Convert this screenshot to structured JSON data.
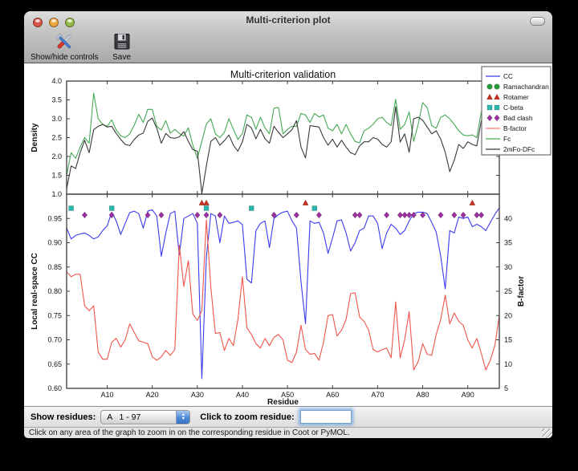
{
  "window": {
    "title": "Multi-criterion plot",
    "traffic_lights": {
      "close": "#d7574a",
      "minimize": "#eca73f",
      "zoom": "#94bb4a"
    }
  },
  "toolbar": {
    "show_hide_label": "Show/hide controls",
    "save_label": "Save"
  },
  "controls": {
    "show_residues_label": "Show residues:",
    "show_residues_value": "A   1 - 97",
    "zoom_residue_label": "Click to zoom residue:",
    "zoom_residue_value": ""
  },
  "status_text": "Click on any area of the graph to zoom in on the corresponding residue in Coot or PyMOL.",
  "chart_data": {
    "type": "line",
    "title": "Multi-criterion validation",
    "xlabel": "Residue",
    "x_tick_labels": [
      "A10",
      "A20",
      "A30",
      "A40",
      "A50",
      "A60",
      "A70",
      "A80",
      "A90"
    ],
    "x_tick_residues": [
      10,
      20,
      30,
      40,
      50,
      60,
      70,
      80,
      90
    ],
    "n_residues": 97,
    "legend_position": "upper right",
    "grid": false,
    "top": {
      "ylabel": "Density",
      "ylim": [
        1.0,
        4.0
      ],
      "yticks": [
        1.0,
        1.5,
        2.0,
        2.5,
        3.0,
        3.5,
        4.0
      ],
      "ytick_labels": [
        "1.0",
        "1.5",
        "2.0",
        "2.5",
        "3.0",
        "3.5",
        "4.0"
      ],
      "series": [
        {
          "name": "Fc",
          "color": "#46a956",
          "values": [
            1.5,
            2.1,
            1.95,
            2.25,
            2.5,
            2.35,
            3.68,
            3.0,
            2.85,
            2.8,
            2.97,
            2.7,
            2.55,
            2.5,
            2.6,
            2.83,
            3.12,
            2.9,
            3.25,
            3.25,
            2.8,
            2.7,
            2.95,
            2.62,
            2.72,
            2.61,
            2.54,
            2.76,
            2.3,
            1.95,
            2.4,
            2.86,
            3.0,
            2.6,
            2.5,
            2.64,
            3.0,
            2.72,
            2.45,
            2.61,
            3.1,
            3.04,
            2.72,
            3.04,
            2.76,
            2.6,
            3.28,
            3.3,
            2.6,
            2.72,
            2.8,
            2.8,
            3.14,
            3.1,
            2.9,
            3.14,
            3.05,
            3.1,
            2.75,
            2.68,
            2.85,
            2.6,
            2.85,
            2.6,
            2.4,
            2.36,
            2.68,
            2.75,
            2.85,
            3.0,
            3.04,
            2.9,
            2.82,
            3.52,
            2.72,
            2.85,
            3.18,
            2.4,
            2.85,
            3.43,
            3.29,
            2.82,
            2.75,
            3.04,
            3.1,
            3.0,
            2.85,
            2.68,
            2.57,
            2.55,
            2.57,
            2.5,
            3.18,
            2.45,
            3.04,
            3.3,
            3.15
          ]
        },
        {
          "name": "2mFo-DFc",
          "color": "#3a3a3a",
          "values": [
            1.15,
            1.75,
            1.68,
            2.1,
            2.43,
            2.1,
            2.71,
            2.8,
            2.85,
            2.78,
            2.8,
            2.61,
            2.45,
            2.32,
            2.29,
            2.45,
            2.57,
            2.62,
            2.93,
            3.02,
            2.75,
            2.35,
            2.61,
            2.5,
            2.48,
            2.52,
            2.66,
            2.4,
            2.18,
            2.14,
            1.02,
            1.75,
            2.4,
            2.5,
            2.3,
            2.42,
            2.57,
            2.3,
            2.14,
            2.39,
            2.85,
            2.76,
            2.47,
            2.72,
            2.47,
            2.35,
            2.8,
            2.64,
            2.5,
            2.6,
            2.71,
            2.95,
            2.25,
            1.96,
            2.82,
            2.8,
            2.78,
            2.5,
            2.3,
            2.46,
            2.25,
            2.43,
            2.25,
            2.1,
            2.05,
            2.28,
            2.39,
            2.39,
            2.5,
            2.46,
            2.32,
            2.25,
            2.39,
            3.32,
            2.38,
            2.6,
            2.11,
            3.0,
            3.04,
            2.96,
            2.78,
            2.6,
            2.68,
            2.46,
            2.11,
            1.6,
            1.9,
            2.32,
            2.21,
            2.39,
            2.32,
            2.28,
            2.95,
            2.43,
            2.32,
            3.1,
            2.1
          ]
        }
      ]
    },
    "bottom": {
      "ylabel_left": "Local real-space CC",
      "ylim_left": [
        0.6,
        1.0
      ],
      "yticks_left": [
        0.6,
        0.65,
        0.7,
        0.75,
        0.8,
        0.85,
        0.9,
        0.95
      ],
      "ytick_labels_left": [
        "0.60",
        "0.65",
        "0.70",
        "0.75",
        "0.80",
        "0.85",
        "0.90",
        "0.95"
      ],
      "ylabel_right": "B-factor",
      "ylim_right": [
        5,
        45
      ],
      "yticks_right": [
        5,
        10,
        15,
        20,
        25,
        30,
        35,
        40
      ],
      "ytick_labels_right": [
        "5",
        "10",
        "15",
        "20",
        "25",
        "30",
        "35",
        "40"
      ],
      "series": [
        {
          "name": "CC",
          "axis": "left",
          "color": "#3b3bee",
          "values": [
            0.93,
            0.908,
            0.915,
            0.918,
            0.92,
            0.915,
            0.908,
            0.912,
            0.925,
            0.935,
            0.963,
            0.945,
            0.917,
            0.94,
            0.962,
            0.965,
            0.96,
            0.93,
            0.965,
            0.968,
            0.955,
            0.872,
            0.92,
            0.96,
            0.965,
            0.875,
            0.95,
            0.955,
            0.96,
            0.94,
            0.62,
            0.87,
            0.96,
            0.955,
            0.9,
            0.955,
            0.94,
            0.942,
            0.945,
            0.937,
            0.825,
            0.817,
            0.925,
            0.94,
            0.945,
            0.89,
            0.95,
            0.958,
            0.963,
            0.965,
            0.945,
            0.93,
            0.82,
            0.733,
            0.945,
            0.94,
            0.942,
            0.92,
            0.878,
            0.91,
            0.945,
            0.947,
            0.92,
            0.883,
            0.9,
            0.925,
            0.93,
            0.955,
            0.955,
            0.94,
            0.888,
            0.92,
            0.938,
            0.93,
            0.917,
            0.925,
            0.945,
            0.96,
            0.963,
            0.963,
            0.96,
            0.942,
            0.922,
            0.872,
            0.805,
            0.925,
            0.92,
            0.953,
            0.95,
            0.953,
            0.933,
            0.938,
            0.933,
            0.925,
            0.942,
            0.958,
            0.972
          ]
        },
        {
          "name": "B-factor",
          "axis": "right",
          "color": "#f0564c",
          "values": [
            29,
            28,
            28.5,
            28.5,
            22,
            21,
            22,
            12.5,
            11,
            11,
            14.5,
            15.3,
            13.5,
            15,
            18.3,
            16.5,
            14.8,
            14.5,
            14.2,
            11.5,
            10.8,
            11.5,
            12.8,
            11.8,
            13,
            34.5,
            26,
            31.3,
            20.3,
            19,
            21,
            39.7,
            25.8,
            16.3,
            16.5,
            12.8,
            15.3,
            13.8,
            19.2,
            28,
            17.5,
            16.1,
            14.2,
            13.3,
            15.3,
            13.8,
            15.5,
            16.1,
            15,
            10.8,
            10.3,
            12.5,
            18,
            13,
            12,
            12.2,
            10.8,
            14.5,
            20,
            20.2,
            15.8,
            17,
            19.2,
            24.5,
            24.7,
            19.7,
            18.8,
            17,
            13,
            12.5,
            13,
            13.3,
            11.3,
            22.8,
            11.3,
            15,
            20.8,
            8.8,
            10.5,
            14.2,
            12,
            11.8,
            16.1,
            19.2,
            24.2,
            18.3,
            20.5,
            18.8,
            18,
            15,
            13.3,
            15.3,
            12.2,
            8.8,
            10.8,
            13.8,
            20
          ]
        }
      ],
      "outlier_markers": [
        {
          "name": "Ramachandran",
          "shape": "circle",
          "color": "#279a3b",
          "residues": []
        },
        {
          "name": "Rotamer",
          "shape": "triangle",
          "color": "#cc2d1f",
          "residues": [
            31,
            32,
            54,
            91
          ]
        },
        {
          "name": "C-beta",
          "shape": "square",
          "color": "#2ab7ae",
          "residues": [
            2,
            11,
            32,
            42,
            56
          ]
        },
        {
          "name": "Bad clash",
          "shape": "diamond",
          "color": "#9b30a0",
          "residues": [
            5,
            11,
            19,
            22,
            30,
            32,
            35,
            47,
            52,
            57,
            65,
            66,
            72,
            75,
            76,
            77,
            78,
            80,
            84,
            87,
            89,
            92,
            93
          ]
        }
      ]
    },
    "legend": [
      {
        "label": "CC",
        "type": "line",
        "color": "#3b3bee"
      },
      {
        "label": "Ramachandran",
        "type": "circle",
        "color": "#279a3b"
      },
      {
        "label": "Rotamer",
        "type": "triangle",
        "color": "#cc2d1f"
      },
      {
        "label": "C-beta",
        "type": "square",
        "color": "#2ab7ae"
      },
      {
        "label": "Bad clash",
        "type": "diamond",
        "color": "#9b30a0"
      },
      {
        "label": "B-factor",
        "type": "line",
        "color": "#f87e6e"
      },
      {
        "label": "Fc",
        "type": "line",
        "color": "#46a956"
      },
      {
        "label": "2mFo-DFc",
        "type": "line",
        "color": "#3a3a3a"
      }
    ]
  }
}
